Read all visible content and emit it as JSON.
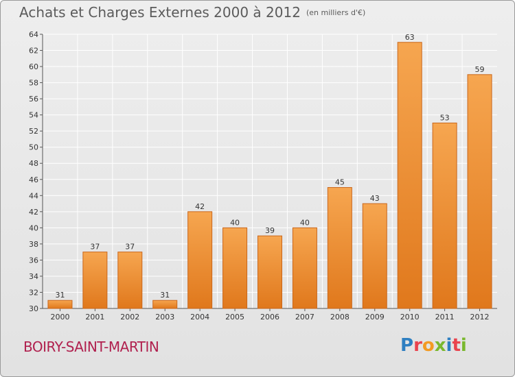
{
  "header": {
    "title": "Achats et Charges Externes 2000 à 2012",
    "subtitle": "(en milliers d'€)"
  },
  "footer": {
    "town": "BOIRY-SAINT-MARTIN",
    "logo_text": "Proxiti",
    "logo_colors": [
      "#2e7fc1",
      "#e9434e",
      "#f39a23",
      "#7ab82e",
      "#2e7fc1",
      "#e9434e",
      "#7ab82e"
    ]
  },
  "colors": {
    "bar_top": "#f6a650",
    "bar_bottom": "#e0781c",
    "bar_edge": "#c9661a",
    "grid": "#ffffff"
  },
  "chart_data": {
    "type": "bar",
    "categories": [
      "2000",
      "2001",
      "2002",
      "2003",
      "2004",
      "2005",
      "2006",
      "2007",
      "2008",
      "2009",
      "2010",
      "2011",
      "2012"
    ],
    "values": [
      31,
      37,
      37,
      31,
      42,
      40,
      39,
      40,
      45,
      43,
      63,
      53,
      59
    ],
    "ylim": [
      30,
      64
    ],
    "yticks": [
      30,
      32,
      34,
      36,
      38,
      40,
      42,
      44,
      46,
      48,
      50,
      52,
      54,
      56,
      58,
      60,
      62,
      64
    ],
    "grid": true,
    "legend": "none"
  }
}
